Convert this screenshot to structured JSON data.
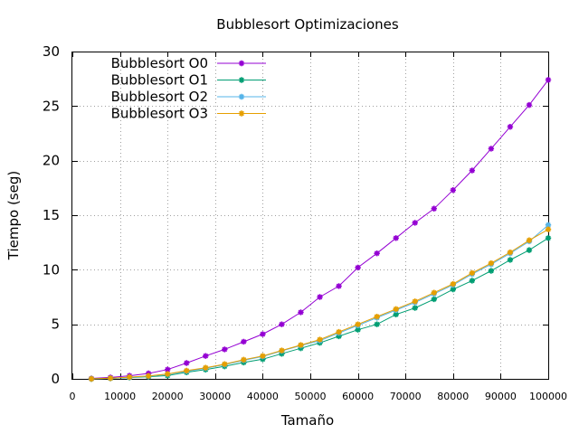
{
  "chart_data": {
    "type": "line",
    "title": "Bubblesort Optimizaciones",
    "xlabel": "Tamaño",
    "ylabel": "Tiempo (seg)",
    "xlim": [
      0,
      100000
    ],
    "ylim": [
      0,
      30
    ],
    "xticks": [
      0,
      10000,
      20000,
      30000,
      40000,
      50000,
      60000,
      70000,
      80000,
      90000,
      100000
    ],
    "yticks": [
      0,
      5,
      10,
      15,
      20,
      25,
      30
    ],
    "grid": true,
    "legend_position": "top-left",
    "x": [
      4000,
      8000,
      12000,
      16000,
      20000,
      24000,
      28000,
      32000,
      36000,
      40000,
      44000,
      48000,
      52000,
      56000,
      60000,
      64000,
      68000,
      72000,
      76000,
      80000,
      84000,
      88000,
      92000,
      96000,
      100000
    ],
    "series": [
      {
        "name": "Bubblesort O0",
        "color": "#9400d3",
        "values": [
          0.04,
          0.13,
          0.28,
          0.5,
          0.85,
          1.45,
          2.1,
          2.7,
          3.4,
          4.1,
          5.0,
          6.1,
          7.5,
          8.5,
          10.2,
          11.5,
          12.9,
          14.3,
          15.6,
          17.3,
          19.1,
          21.1,
          23.1,
          25.1,
          27.4
        ]
      },
      {
        "name": "Bubblesort O1",
        "color": "#009e73",
        "values": [
          0.0,
          0.05,
          0.12,
          0.2,
          0.3,
          0.6,
          0.85,
          1.15,
          1.5,
          1.8,
          2.3,
          2.8,
          3.3,
          3.9,
          4.5,
          5.0,
          5.9,
          6.5,
          7.3,
          8.2,
          9.0,
          9.9,
          10.9,
          11.8,
          12.9
        ]
      },
      {
        "name": "Bubblesort O2",
        "color": "#56b4e9",
        "values": [
          0.0,
          0.05,
          0.14,
          0.24,
          0.42,
          0.7,
          0.98,
          1.3,
          1.7,
          2.05,
          2.55,
          3.05,
          3.5,
          4.2,
          4.9,
          5.6,
          6.3,
          7.0,
          7.8,
          8.6,
          9.6,
          10.5,
          11.5,
          12.6,
          14.1
        ]
      },
      {
        "name": "Bubblesort O3",
        "color": "#e69f00",
        "values": [
          0.0,
          0.06,
          0.16,
          0.27,
          0.45,
          0.75,
          1.02,
          1.35,
          1.75,
          2.1,
          2.6,
          3.1,
          3.6,
          4.3,
          5.0,
          5.7,
          6.4,
          7.1,
          7.9,
          8.7,
          9.7,
          10.6,
          11.6,
          12.7,
          13.7
        ]
      }
    ]
  }
}
